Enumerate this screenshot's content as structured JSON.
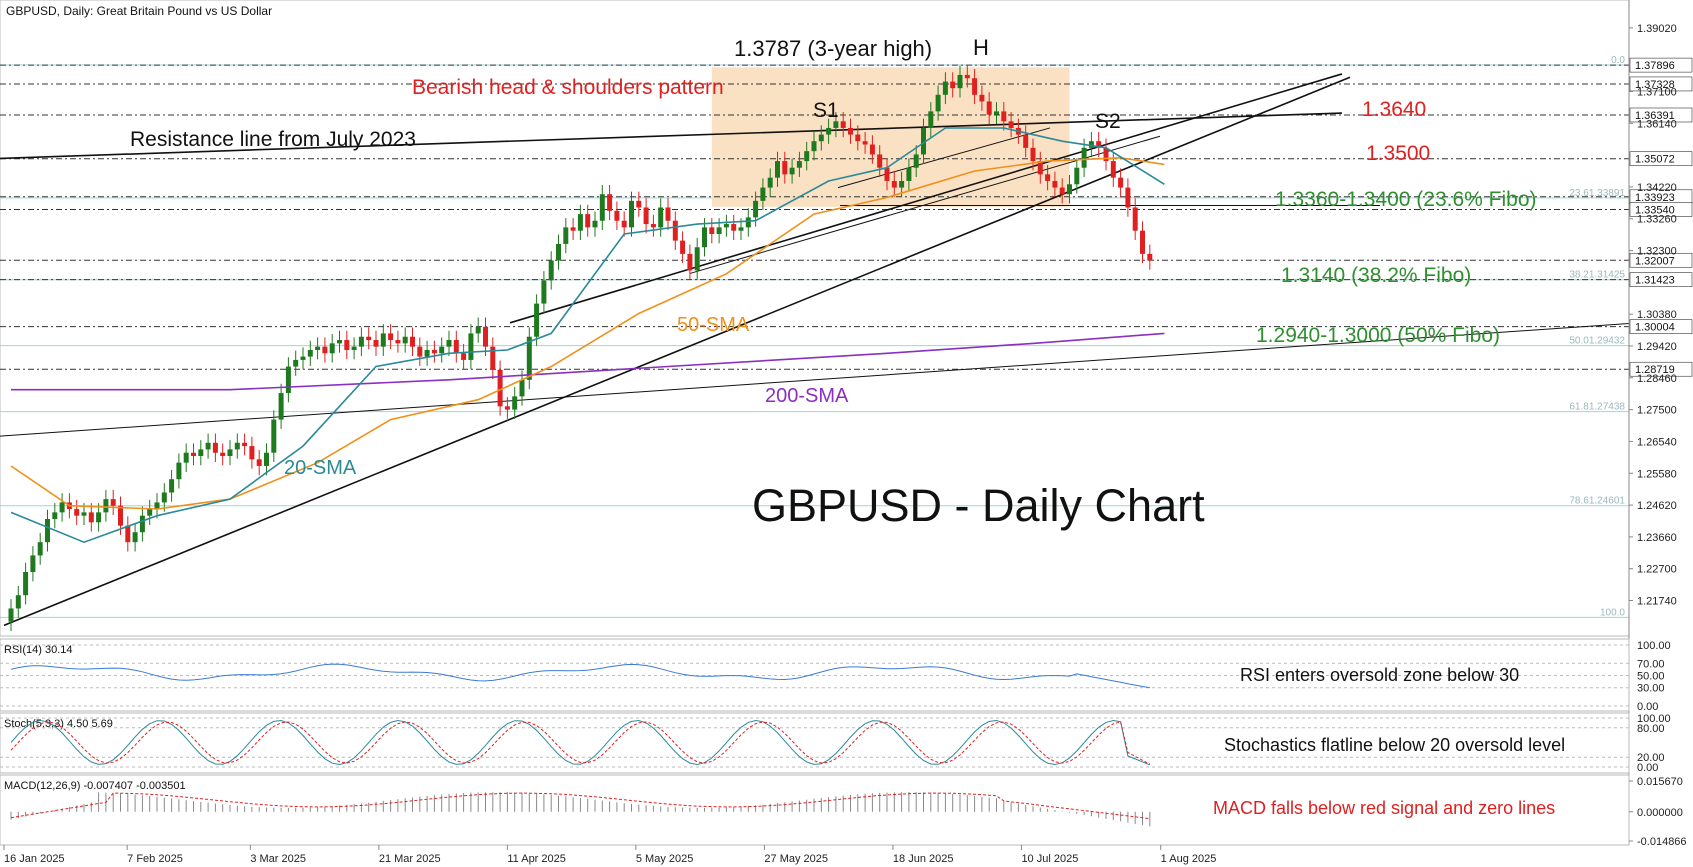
{
  "header": {
    "symbol_info": "GBPUSD, Daily:  Great Britain Pound vs US Dollar"
  },
  "colors": {
    "bull": "#1f7a1f",
    "bear": "#e02020",
    "sma20": "#2a8a9a",
    "sma50": "#f0901a",
    "sma200": "#8a2fc0",
    "fibo": "#9fd6dc",
    "box": "#f9dcb8",
    "annot_red": "#e02020",
    "annot_green": "#2f8f2f",
    "rsi": "#3a7bd5",
    "stoch_main": "#2a8a9a",
    "stoch_signal": "#e02020",
    "macd_signal": "#e02020",
    "macd_hist": "#888888"
  },
  "chart_data": {
    "type": "candlestick",
    "title": "GBPUSD - Daily Chart",
    "x_tick_labels": [
      "16 Jan 2025",
      "7 Feb 2025",
      "3 Mar 2025",
      "21 Mar 2025",
      "11 Apr 2025",
      "5 May 2025",
      "27 May 2025",
      "18 Jun 2025",
      "10 Jul 2025",
      "1 Aug 2025"
    ],
    "y_tick_labels": [
      "1.39020",
      "1.37100",
      "1.36140",
      "1.34220",
      "1.33260",
      "1.32300",
      "1.30380",
      "1.29420",
      "1.28460",
      "1.27500",
      "1.26540",
      "1.25580",
      "1.24620",
      "1.23660",
      "1.22700",
      "1.21740"
    ],
    "y_range": [
      1.2085,
      1.3968
    ],
    "price_labels": [
      "1.37896",
      "1.37328",
      "1.36391",
      "1.35072",
      "1.33923",
      "1.33540",
      "1.32007",
      "1.31423",
      "1.30004",
      "1.28719"
    ],
    "fibo_labels": [
      "0.0",
      "23.61.33891",
      "38.21.31425",
      "50.01.29432",
      "61.81.27438",
      "78.61.24601",
      "100.0"
    ],
    "closes": [
      1.215,
      1.219,
      1.226,
      1.231,
      1.235,
      1.242,
      1.244,
      1.247,
      1.245,
      1.243,
      1.244,
      1.241,
      1.244,
      1.248,
      1.246,
      1.24,
      1.235,
      1.238,
      1.243,
      1.245,
      1.247,
      1.25,
      1.254,
      1.259,
      1.262,
      1.261,
      1.263,
      1.265,
      1.262,
      1.261,
      1.263,
      1.265,
      1.264,
      1.26,
      1.258,
      1.262,
      1.272,
      1.28,
      1.288,
      1.29,
      1.291,
      1.293,
      1.294,
      1.292,
      1.295,
      1.296,
      1.293,
      1.294,
      1.297,
      1.296,
      1.294,
      1.298,
      1.296,
      1.295,
      1.297,
      1.294,
      1.291,
      1.293,
      1.292,
      1.294,
      1.296,
      1.292,
      1.29,
      1.298,
      1.3,
      1.294,
      1.287,
      1.276,
      1.275,
      1.279,
      1.284,
      1.297,
      1.307,
      1.314,
      1.32,
      1.325,
      1.33,
      1.329,
      1.334,
      1.33,
      1.332,
      1.34,
      1.335,
      1.332,
      1.33,
      1.338,
      1.336,
      1.331,
      1.33,
      1.336,
      1.332,
      1.326,
      1.322,
      1.317,
      1.324,
      1.33,
      1.328,
      1.33,
      1.331,
      1.329,
      1.33,
      1.333,
      1.338,
      1.342,
      1.345,
      1.35,
      1.346,
      1.348,
      1.35,
      1.353,
      1.356,
      1.358,
      1.36,
      1.362,
      1.36,
      1.358,
      1.356,
      1.355,
      1.352,
      1.348,
      1.344,
      1.342,
      1.344,
      1.348,
      1.352,
      1.36,
      1.365,
      1.37,
      1.374,
      1.372,
      1.376,
      1.375,
      1.37,
      1.368,
      1.364,
      1.365,
      1.362,
      1.36,
      1.358,
      1.354,
      1.35,
      1.346,
      1.344,
      1.342,
      1.34,
      1.343,
      1.348,
      1.354,
      1.356,
      1.354,
      1.35,
      1.345,
      1.342,
      1.336,
      1.329,
      1.322,
      1.32
    ],
    "sma20": [
      [
        0,
        1.244
      ],
      [
        10,
        1.235
      ],
      [
        20,
        1.243
      ],
      [
        30,
        1.248
      ],
      [
        40,
        1.264
      ],
      [
        50,
        1.288
      ],
      [
        60,
        1.292
      ],
      [
        68,
        1.293
      ],
      [
        74,
        1.298
      ],
      [
        84,
        1.328
      ],
      [
        94,
        1.331
      ],
      [
        102,
        1.332
      ],
      [
        112,
        1.344
      ],
      [
        120,
        1.348
      ],
      [
        128,
        1.36
      ],
      [
        136,
        1.36
      ],
      [
        144,
        1.356
      ],
      [
        150,
        1.354
      ],
      [
        158,
        1.343
      ]
    ],
    "sma50": [
      [
        0,
        1.258
      ],
      [
        8,
        1.246
      ],
      [
        20,
        1.245
      ],
      [
        30,
        1.248
      ],
      [
        42,
        1.259
      ],
      [
        52,
        1.272
      ],
      [
        64,
        1.278
      ],
      [
        74,
        1.288
      ],
      [
        86,
        1.304
      ],
      [
        98,
        1.316
      ],
      [
        110,
        1.334
      ],
      [
        120,
        1.339
      ],
      [
        132,
        1.347
      ],
      [
        142,
        1.35
      ],
      [
        152,
        1.351
      ],
      [
        158,
        1.349
      ]
    ],
    "sma200": [
      [
        0,
        1.281
      ],
      [
        30,
        1.281
      ],
      [
        60,
        1.284
      ],
      [
        90,
        1.288
      ],
      [
        120,
        1.292
      ],
      [
        140,
        1.295
      ],
      [
        158,
        1.298
      ]
    ],
    "rsi": {
      "label": "RSI(14) 30.14",
      "levels": [
        "100.00",
        "70.00",
        "50.00",
        "30.00",
        "0.00"
      ],
      "last": 30.14
    },
    "stoch": {
      "label": "Stoch(5,3,3) 4.50 5.69",
      "levels": [
        "100.00",
        "80.00",
        "20.00",
        "0.00"
      ],
      "k": 4.5,
      "d": 5.69
    },
    "macd": {
      "label": "MACD(12,26,9) -0.007407 -0.003501",
      "levels": [
        "0.015670",
        "0.000000",
        "-0.014866"
      ],
      "macd": -0.007407,
      "signal": -0.003501
    }
  },
  "annotations": {
    "high": "1.3787 (3-year high)",
    "h": "H",
    "s1": "S1",
    "s2": "S2",
    "pattern": "Bearish head & shoulders pattern",
    "resistance": "Resistance line from July 2023",
    "lvl_1364": "1.3640",
    "lvl_1350": "1.3500",
    "lvl_1336": "1.3360-1.3400 (23.6% Fibo)",
    "lvl_1314": "1.3140 (38.2% Fibo)",
    "lvl_1294": "1.2940-1.3000 (50% Fibo)",
    "sma50": "50-SMA",
    "sma200": "200-SMA",
    "sma20": "20-SMA",
    "rsi_note": "RSI enters oversold zone below 30",
    "stoch_note": "Stochastics flatline below 20 oversold level",
    "macd_note": "MACD falls below red signal and zero lines"
  }
}
